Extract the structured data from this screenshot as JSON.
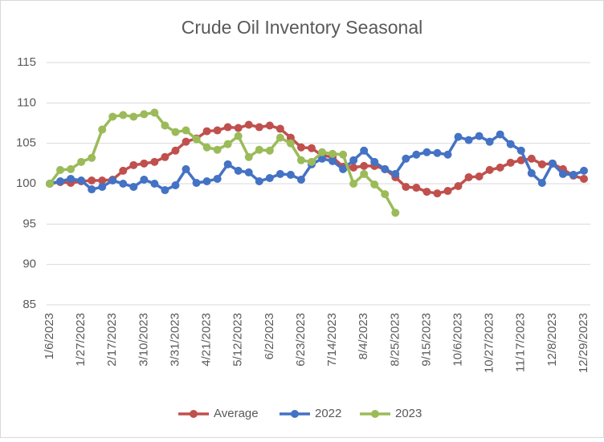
{
  "chart_data": {
    "type": "line",
    "title": "Crude Oil Inventory Seasonal",
    "categories": [
      "1/6/2023",
      null,
      null,
      "1/27/2023",
      null,
      null,
      "2/17/2023",
      null,
      null,
      "3/10/2023",
      null,
      null,
      "3/31/2023",
      null,
      null,
      "4/21/2023",
      null,
      null,
      "5/12/2023",
      null,
      null,
      "6/2/2023",
      null,
      null,
      "6/23/2023",
      null,
      null,
      "7/14/2023",
      null,
      null,
      "8/4/2023",
      null,
      null,
      "8/25/2023",
      null,
      null,
      "9/15/2023",
      null,
      null,
      "10/6/2023",
      null,
      null,
      "10/27/2023",
      null,
      null,
      "11/17/2023",
      null,
      null,
      "12/8/2023",
      null,
      null,
      "12/29/2023"
    ],
    "series": [
      {
        "name": "Average",
        "color": "#c0504d",
        "values": [
          100,
          100.2,
          100.1,
          100.3,
          100.4,
          100.4,
          100.5,
          101.6,
          102.3,
          102.5,
          102.7,
          103.3,
          104.1,
          105.2,
          105.6,
          106.5,
          106.6,
          107.0,
          106.9,
          107.3,
          107.0,
          107.2,
          106.8,
          105.7,
          104.5,
          104.4,
          103.5,
          103.3,
          102.1,
          102.0,
          102.2,
          102.2,
          101.8,
          100.8,
          99.6,
          99.5,
          99.0,
          98.8,
          99.1,
          99.7,
          100.8,
          100.9,
          101.7,
          102.0,
          102.6,
          102.9,
          103.1,
          102.4,
          102.5,
          101.8,
          101.0,
          100.6
        ]
      },
      {
        "name": "2022",
        "color": "#4472c4",
        "values": [
          100,
          100.3,
          100.6,
          100.4,
          99.3,
          99.6,
          100.4,
          100.0,
          99.6,
          100.5,
          100.0,
          99.2,
          99.8,
          101.8,
          100.1,
          100.3,
          100.6,
          102.4,
          101.6,
          101.4,
          100.3,
          100.7,
          101.2,
          101.1,
          100.5,
          102.4,
          103.1,
          102.8,
          101.8,
          102.9,
          104.1,
          102.7,
          101.8,
          101.2,
          103.1,
          103.6,
          103.9,
          103.8,
          103.6,
          105.8,
          105.4,
          105.9,
          105.2,
          106.1,
          104.9,
          104.1,
          101.3,
          100.1,
          102.5,
          101.2,
          101.1,
          101.6
        ]
      },
      {
        "name": "2023",
        "color": "#9bbb59",
        "values": [
          100,
          101.7,
          101.8,
          102.7,
          103.2,
          106.7,
          108.3,
          108.5,
          108.3,
          108.6,
          108.8,
          107.2,
          106.4,
          106.6,
          105.5,
          104.5,
          104.2,
          104.9,
          105.9,
          103.3,
          104.2,
          104.1,
          105.7,
          105.0,
          102.9,
          102.7,
          103.9,
          103.7,
          103.6,
          100.0,
          101.2,
          99.9,
          98.7,
          96.4,
          null,
          null,
          null,
          null,
          null,
          null,
          null,
          null,
          null,
          null,
          null,
          null,
          null,
          null,
          null,
          null,
          null,
          null
        ]
      }
    ],
    "ylim": [
      85,
      115
    ],
    "yticks": [
      85,
      90,
      95,
      100,
      105,
      110,
      115
    ],
    "grid": true,
    "legend": "bottom"
  }
}
